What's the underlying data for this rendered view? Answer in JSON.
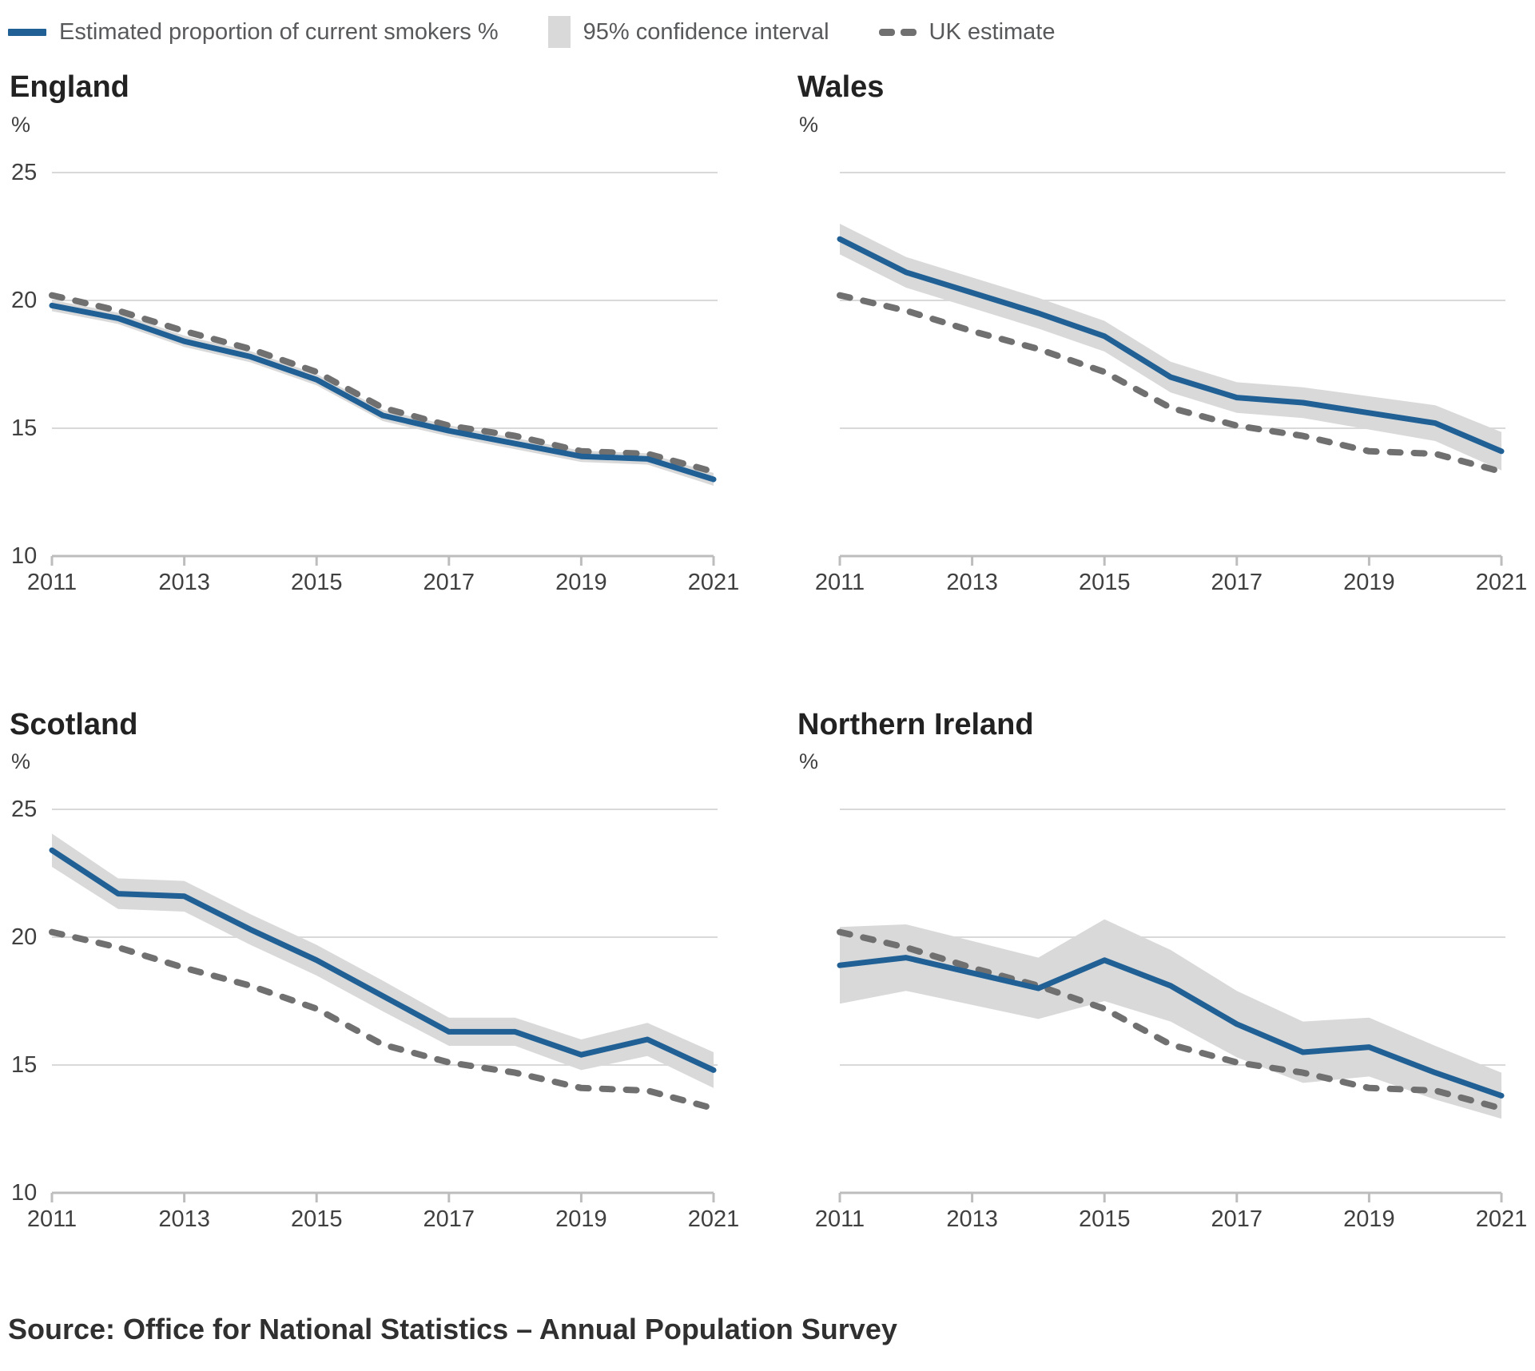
{
  "legend": {
    "series_label": "Estimated proportion of current smokers %",
    "ci_label": "95% confidence interval",
    "uk_label": "UK estimate"
  },
  "source": "Source: Office for National Statistics – Annual Population Survey",
  "colors": {
    "smokers_line": "#206095",
    "uk_line": "#707070",
    "ci_band": "#d9d9d9",
    "gridline": "#d9d9d9",
    "axis_line": "#bdbdbd",
    "tick_label": "#404041",
    "title": "#222222"
  },
  "chart_data": [
    {
      "type": "line",
      "title": "England",
      "unit": "%",
      "x": [
        2011,
        2012,
        2013,
        2014,
        2015,
        2016,
        2017,
        2018,
        2019,
        2020,
        2021
      ],
      "xticks": [
        2011,
        2013,
        2015,
        2017,
        2019,
        2021
      ],
      "ylim": [
        10,
        25
      ],
      "yticks": [
        10,
        15,
        20,
        25
      ],
      "show_y_tick_labels": true,
      "grid": true,
      "legend_position": "top-shared",
      "series": [
        {
          "name": "Estimated proportion of current smokers %",
          "style": "solid",
          "values": [
            19.8,
            19.3,
            18.4,
            17.8,
            16.9,
            15.5,
            14.9,
            14.4,
            13.9,
            13.8,
            13.0
          ]
        },
        {
          "name": "UK estimate",
          "style": "dashed",
          "values": [
            20.2,
            19.6,
            18.8,
            18.1,
            17.2,
            15.8,
            15.1,
            14.7,
            14.1,
            14.0,
            13.3
          ]
        }
      ],
      "ci_halfwidth": [
        0.22,
        0.22,
        0.22,
        0.22,
        0.22,
        0.22,
        0.22,
        0.22,
        0.22,
        0.22,
        0.25
      ]
    },
    {
      "type": "line",
      "title": "Wales",
      "unit": "%",
      "x": [
        2011,
        2012,
        2013,
        2014,
        2015,
        2016,
        2017,
        2018,
        2019,
        2020,
        2021
      ],
      "xticks": [
        2011,
        2013,
        2015,
        2017,
        2019,
        2021
      ],
      "ylim": [
        10,
        25
      ],
      "yticks": [
        10,
        15,
        20,
        25
      ],
      "show_y_tick_labels": false,
      "grid": true,
      "legend_position": "top-shared",
      "series": [
        {
          "name": "Estimated proportion of current smokers %",
          "style": "solid",
          "values": [
            22.4,
            21.1,
            20.3,
            19.5,
            18.6,
            17.0,
            16.2,
            16.0,
            15.6,
            15.2,
            14.1
          ]
        },
        {
          "name": "UK estimate",
          "style": "dashed",
          "values": [
            20.2,
            19.6,
            18.8,
            18.1,
            17.2,
            15.8,
            15.1,
            14.7,
            14.1,
            14.0,
            13.3
          ]
        }
      ],
      "ci_halfwidth": [
        0.6,
        0.6,
        0.6,
        0.6,
        0.6,
        0.6,
        0.6,
        0.6,
        0.65,
        0.7,
        0.75
      ]
    },
    {
      "type": "line",
      "title": "Scotland",
      "unit": "%",
      "x": [
        2011,
        2012,
        2013,
        2014,
        2015,
        2016,
        2017,
        2018,
        2019,
        2020,
        2021
      ],
      "xticks": [
        2011,
        2013,
        2015,
        2017,
        2019,
        2021
      ],
      "ylim": [
        10,
        25
      ],
      "yticks": [
        10,
        15,
        20,
        25
      ],
      "show_y_tick_labels": true,
      "grid": true,
      "legend_position": "top-shared",
      "series": [
        {
          "name": "Estimated proportion of current smokers %",
          "style": "solid",
          "values": [
            23.4,
            21.7,
            21.6,
            20.3,
            19.1,
            17.7,
            16.3,
            16.3,
            15.4,
            16.0,
            14.8
          ]
        },
        {
          "name": "UK estimate",
          "style": "dashed",
          "values": [
            20.2,
            19.6,
            18.8,
            18.1,
            17.2,
            15.8,
            15.1,
            14.7,
            14.1,
            14.0,
            13.3
          ]
        }
      ],
      "ci_halfwidth": [
        0.65,
        0.6,
        0.6,
        0.6,
        0.6,
        0.6,
        0.55,
        0.55,
        0.6,
        0.65,
        0.7
      ]
    },
    {
      "type": "line",
      "title": "Northern Ireland",
      "unit": "%",
      "x": [
        2011,
        2012,
        2013,
        2014,
        2015,
        2016,
        2017,
        2018,
        2019,
        2020,
        2021
      ],
      "xticks": [
        2011,
        2013,
        2015,
        2017,
        2019,
        2021
      ],
      "ylim": [
        10,
        25
      ],
      "yticks": [
        10,
        15,
        20,
        25
      ],
      "show_y_tick_labels": false,
      "grid": true,
      "legend_position": "top-shared",
      "series": [
        {
          "name": "Estimated proportion of current smokers %",
          "style": "solid",
          "values": [
            18.9,
            19.2,
            18.6,
            18.0,
            19.1,
            18.1,
            16.6,
            15.5,
            15.7,
            14.7,
            13.8
          ]
        },
        {
          "name": "UK estimate",
          "style": "dashed",
          "values": [
            20.2,
            19.6,
            18.8,
            18.1,
            17.2,
            15.8,
            15.1,
            14.7,
            14.1,
            14.0,
            13.3
          ]
        }
      ],
      "ci_halfwidth": [
        1.5,
        1.3,
        1.25,
        1.2,
        1.6,
        1.4,
        1.3,
        1.2,
        1.15,
        1.05,
        0.9
      ]
    }
  ]
}
